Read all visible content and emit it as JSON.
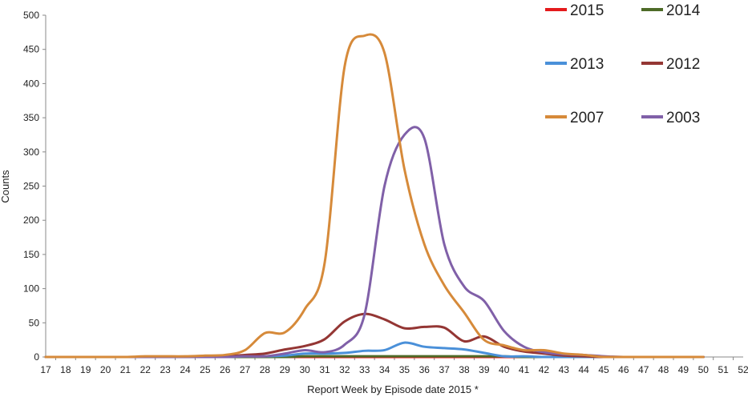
{
  "chart_data": {
    "type": "line",
    "title": "",
    "xlabel": "Report Week by Episode date 2015 *",
    "ylabel": "Counts",
    "ylim": [
      0,
      500
    ],
    "yticks": [
      0,
      50,
      100,
      150,
      200,
      250,
      300,
      350,
      400,
      450,
      500
    ],
    "categories": [
      17,
      18,
      19,
      20,
      21,
      22,
      23,
      24,
      25,
      26,
      27,
      28,
      29,
      30,
      31,
      32,
      33,
      34,
      35,
      36,
      37,
      38,
      39,
      40,
      41,
      42,
      43,
      44,
      45,
      46,
      47,
      48,
      49,
      50,
      51,
      52
    ],
    "legend_position": "top-right",
    "series": [
      {
        "name": "2015",
        "color": "#e41a1c",
        "values": [
          0,
          0,
          0,
          0,
          0,
          0,
          0,
          0,
          0,
          0,
          0,
          0,
          0,
          0,
          0,
          0,
          0,
          0,
          0,
          0,
          0,
          0,
          0,
          0,
          0,
          0,
          0,
          0,
          0,
          0,
          0,
          0,
          0,
          0,
          null,
          null
        ]
      },
      {
        "name": "2014",
        "color": "#4e6b28",
        "values": [
          0,
          0,
          0,
          0,
          0,
          0,
          0,
          0,
          0,
          0,
          0,
          0,
          0,
          1,
          1,
          1,
          1,
          1,
          1,
          1,
          1,
          1,
          1,
          1,
          0,
          0,
          0,
          0,
          0,
          0,
          0,
          0,
          0,
          0,
          null,
          null
        ]
      },
      {
        "name": "2013",
        "color": "#4a90d9",
        "values": [
          0,
          0,
          0,
          0,
          0,
          0,
          0,
          0,
          0,
          0,
          1,
          1,
          2,
          5,
          5,
          6,
          9,
          10,
          21,
          15,
          13,
          11,
          6,
          1,
          1,
          0,
          0,
          0,
          0,
          0,
          0,
          0,
          0,
          0,
          null,
          null
        ]
      },
      {
        "name": "2012",
        "color": "#943634",
        "values": [
          0,
          0,
          0,
          0,
          0,
          0,
          0,
          0,
          1,
          1,
          3,
          5,
          11,
          16,
          26,
          52,
          63,
          55,
          42,
          44,
          43,
          23,
          30,
          15,
          8,
          5,
          2,
          1,
          0,
          0,
          0,
          0,
          0,
          0,
          null,
          null
        ]
      },
      {
        "name": "2007",
        "color": "#d68a3a",
        "values": [
          0,
          0,
          0,
          0,
          0,
          1,
          1,
          1,
          2,
          3,
          10,
          35,
          36,
          70,
          138,
          425,
          470,
          445,
          275,
          165,
          105,
          65,
          25,
          17,
          10,
          10,
          5,
          3,
          0,
          0,
          0,
          0,
          0,
          0,
          null,
          null
        ]
      },
      {
        "name": "2003",
        "color": "#8060a8",
        "values": [
          0,
          0,
          0,
          0,
          0,
          0,
          0,
          0,
          0,
          0,
          1,
          1,
          5,
          10,
          7,
          18,
          62,
          250,
          325,
          320,
          165,
          103,
          82,
          38,
          15,
          7,
          4,
          3,
          1,
          0,
          0,
          0,
          0,
          0,
          null,
          null
        ]
      }
    ]
  }
}
